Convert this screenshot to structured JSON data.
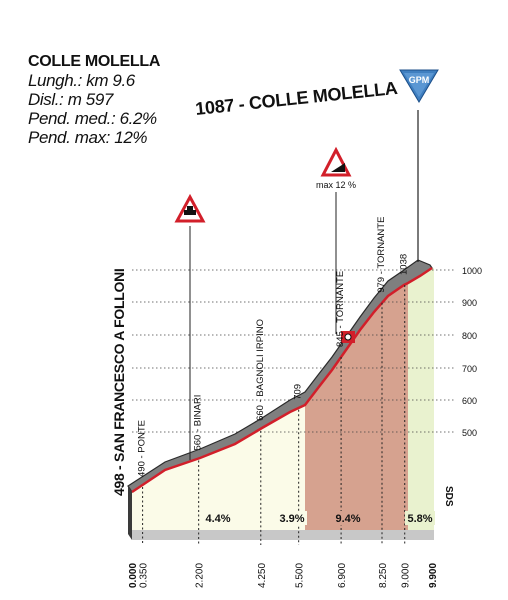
{
  "info": {
    "climb_name": "COLLE MOLELLA",
    "length": "Lungh.: km 9.6",
    "elevation_gain": "Disl.: m 597",
    "avg_gradient": "Pend. med.: 6.2%",
    "max_gradient": "Pend. max:  12%"
  },
  "summit_label": "1087 - COLLE MOLELLA",
  "gpm_badge": "GPM",
  "max_grade_note": "max 12 %",
  "start_label": "498 - SAN FRANCESCO A FOLLONI",
  "waypoints": [
    {
      "label": "490 - PONTE",
      "km": 0.35
    },
    {
      "label": "560 - BINARI",
      "km": 2.2
    },
    {
      "label": "660 - BAGNOLI IRPINO",
      "km": 4.25
    },
    {
      "label": "709",
      "km": 5.5
    },
    {
      "label": "845 - TORNANTE",
      "km": 6.9
    },
    {
      "label": "979 - TORNANTE",
      "km": 8.25
    },
    {
      "label": "1038",
      "km": 9.0
    }
  ],
  "km_markers": [
    "0.000",
    "0.350",
    "2.200",
    "4.250",
    "5.500",
    "6.900",
    "8.250",
    "9.000",
    "9.900"
  ],
  "altitude_ticks": [
    "500",
    "600",
    "700",
    "800",
    "900",
    "1000"
  ],
  "segment_gradients": [
    {
      "label": "4.4%",
      "from_km": 0.0,
      "to_km": 5.5
    },
    {
      "label": "3.9%",
      "from_km": 4.25,
      "to_km": 5.5
    },
    {
      "label": "9.4%",
      "from_km": 5.5,
      "to_km": 9.0
    },
    {
      "label": "5.8%",
      "from_km": 9.0,
      "to_km": 9.9
    }
  ],
  "sds_label": "SDS",
  "colors": {
    "road": "#7f7f7f",
    "road_edge": "#d21f2a",
    "fill_light": "#fbfbe8",
    "fill_steep": "#d6a28f",
    "fill_final": "#e9f2cf",
    "gpm": "#3f7fc0",
    "warning": "#d21f2a"
  }
}
